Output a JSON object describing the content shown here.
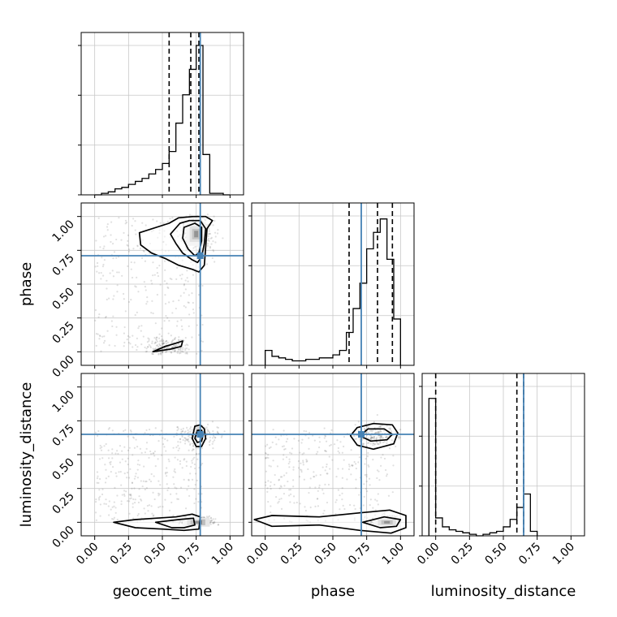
{
  "chart_data": {
    "type": "corner",
    "parameters": [
      "geocent_time",
      "phase",
      "luminosity_distance"
    ],
    "axis_range": [
      -0.1,
      1.1
    ],
    "tick_values": [
      0.0,
      0.25,
      0.5,
      0.75,
      1.0
    ],
    "tick_labels": [
      "0.00",
      "0.25",
      "0.50",
      "0.75",
      "1.00"
    ],
    "grid": true,
    "colors": {
      "truth": "#4682b4",
      "hist": "#000000",
      "quantile": "#000000",
      "scatter": "#555555"
    },
    "truths": {
      "geocent_time": 0.78,
      "phase": 0.71,
      "luminosity_distance": 0.65
    },
    "histograms": [
      {
        "param": "geocent_time",
        "bins": [
          0.0,
          0.05,
          0.1,
          0.15,
          0.2,
          0.25,
          0.3,
          0.35,
          0.4,
          0.45,
          0.5,
          0.55,
          0.6,
          0.65,
          0.7,
          0.75,
          0.8,
          0.85,
          0.9,
          0.95,
          1.0
        ],
        "counts": [
          0.0,
          0.01,
          0.02,
          0.04,
          0.05,
          0.07,
          0.09,
          0.11,
          0.14,
          0.17,
          0.21,
          0.29,
          0.48,
          0.67,
          0.84,
          1.0,
          0.27,
          0.01,
          0.01,
          0.0
        ],
        "quantiles": [
          0.55,
          0.71,
          0.77
        ]
      },
      {
        "param": "phase",
        "bins": [
          0.0,
          0.05,
          0.1,
          0.15,
          0.2,
          0.25,
          0.3,
          0.35,
          0.4,
          0.45,
          0.5,
          0.55,
          0.6,
          0.65,
          0.7,
          0.75,
          0.8,
          0.85,
          0.9,
          0.95,
          1.0
        ],
        "counts": [
          0.1,
          0.06,
          0.05,
          0.04,
          0.03,
          0.03,
          0.04,
          0.04,
          0.05,
          0.05,
          0.07,
          0.1,
          0.22,
          0.38,
          0.55,
          0.78,
          0.89,
          0.98,
          0.71,
          0.31
        ],
        "quantiles": [
          0.62,
          0.83,
          0.94
        ]
      },
      {
        "param": "luminosity_distance",
        "bins": [
          -0.05,
          0.0,
          0.05,
          0.1,
          0.15,
          0.2,
          0.25,
          0.3,
          0.35,
          0.4,
          0.45,
          0.5,
          0.55,
          0.6,
          0.65,
          0.7,
          0.75
        ],
        "counts": [
          0.92,
          0.12,
          0.06,
          0.04,
          0.03,
          0.02,
          0.01,
          0.0,
          0.01,
          0.02,
          0.03,
          0.06,
          0.11,
          0.19,
          0.28,
          0.03
        ],
        "quantiles": [
          0.0,
          0.6,
          0.65
        ]
      }
    ],
    "panels_2d": [
      {
        "x": "geocent_time",
        "y": "phase",
        "peak": [
          0.75,
          0.87
        ],
        "secondary_mode": [
          0.53,
          0.03
        ],
        "contours": [
          [
            [
              0.55,
              0.95
            ],
            [
              0.62,
              0.99
            ],
            [
              0.73,
              1.0
            ],
            [
              0.82,
              1.0
            ],
            [
              0.87,
              0.97
            ],
            [
              0.83,
              0.91
            ],
            [
              0.82,
              0.77
            ],
            [
              0.81,
              0.64
            ],
            [
              0.77,
              0.59
            ],
            [
              0.72,
              0.61
            ],
            [
              0.62,
              0.64
            ],
            [
              0.52,
              0.69
            ],
            [
              0.42,
              0.73
            ],
            [
              0.34,
              0.79
            ],
            [
              0.33,
              0.88
            ]
          ],
          [
            [
              0.63,
              0.95
            ],
            [
              0.7,
              0.97
            ],
            [
              0.78,
              0.97
            ],
            [
              0.82,
              0.91
            ],
            [
              0.81,
              0.8
            ],
            [
              0.79,
              0.7
            ],
            [
              0.76,
              0.66
            ],
            [
              0.72,
              0.68
            ],
            [
              0.65,
              0.73
            ],
            [
              0.6,
              0.8
            ],
            [
              0.56,
              0.87
            ]
          ],
          [
            [
              0.66,
              0.92
            ],
            [
              0.74,
              0.95
            ],
            [
              0.79,
              0.92
            ],
            [
              0.79,
              0.82
            ],
            [
              0.77,
              0.73
            ],
            [
              0.74,
              0.71
            ],
            [
              0.69,
              0.76
            ],
            [
              0.65,
              0.84
            ]
          ],
          [
            [
              0.43,
              0.0
            ],
            [
              0.52,
              0.04
            ],
            [
              0.59,
              0.06
            ],
            [
              0.65,
              0.08
            ],
            [
              0.64,
              0.04
            ],
            [
              0.56,
              0.02
            ]
          ]
        ]
      },
      {
        "x": "geocent_time",
        "y": "luminosity_distance",
        "peak": [
          0.75,
          0.0
        ],
        "secondary_mode": [
          0.78,
          0.64
        ],
        "contours": [
          [
            [
              0.14,
              0.0
            ],
            [
              0.3,
              -0.04
            ],
            [
              0.5,
              -0.05
            ],
            [
              0.66,
              -0.06
            ],
            [
              0.77,
              -0.05
            ],
            [
              0.78,
              0.04
            ],
            [
              0.72,
              0.06
            ],
            [
              0.6,
              0.04
            ],
            [
              0.45,
              0.03
            ],
            [
              0.3,
              0.02
            ]
          ],
          [
            [
              0.45,
              0.0
            ],
            [
              0.57,
              -0.04
            ],
            [
              0.66,
              -0.04
            ],
            [
              0.74,
              -0.02
            ],
            [
              0.73,
              0.03
            ],
            [
              0.62,
              0.02
            ]
          ],
          [
            [
              0.72,
              0.62
            ],
            [
              0.75,
              0.56
            ],
            [
              0.79,
              0.56
            ],
            [
              0.82,
              0.62
            ],
            [
              0.81,
              0.69
            ],
            [
              0.78,
              0.72
            ],
            [
              0.74,
              0.71
            ]
          ],
          [
            [
              0.74,
              0.62
            ],
            [
              0.76,
              0.59
            ],
            [
              0.79,
              0.6
            ],
            [
              0.8,
              0.64
            ],
            [
              0.79,
              0.68
            ],
            [
              0.76,
              0.68
            ]
          ]
        ]
      },
      {
        "x": "phase",
        "y": "luminosity_distance",
        "peak": [
          0.9,
          0.0
        ],
        "secondary_mode": [
          0.8,
          0.65
        ],
        "contours": [
          [
            [
              -0.08,
              0.02
            ],
            [
              0.05,
              -0.03
            ],
            [
              0.4,
              -0.02
            ],
            [
              0.7,
              -0.06
            ],
            [
              0.93,
              -0.08
            ],
            [
              1.04,
              -0.04
            ],
            [
              1.04,
              0.05
            ],
            [
              0.92,
              0.09
            ],
            [
              0.7,
              0.07
            ],
            [
              0.4,
              0.04
            ],
            [
              0.05,
              0.05
            ]
          ],
          [
            [
              0.72,
              0.0
            ],
            [
              0.85,
              -0.04
            ],
            [
              0.97,
              -0.03
            ],
            [
              1.0,
              0.02
            ],
            [
              0.88,
              0.04
            ]
          ],
          [
            [
              0.63,
              0.64
            ],
            [
              0.68,
              0.57
            ],
            [
              0.8,
              0.54
            ],
            [
              0.95,
              0.58
            ],
            [
              0.98,
              0.66
            ],
            [
              0.94,
              0.72
            ],
            [
              0.8,
              0.73
            ],
            [
              0.68,
              0.7
            ]
          ],
          [
            [
              0.7,
              0.64
            ],
            [
              0.78,
              0.6
            ],
            [
              0.9,
              0.61
            ],
            [
              0.94,
              0.65
            ],
            [
              0.88,
              0.69
            ],
            [
              0.76,
              0.69
            ]
          ]
        ]
      }
    ]
  }
}
